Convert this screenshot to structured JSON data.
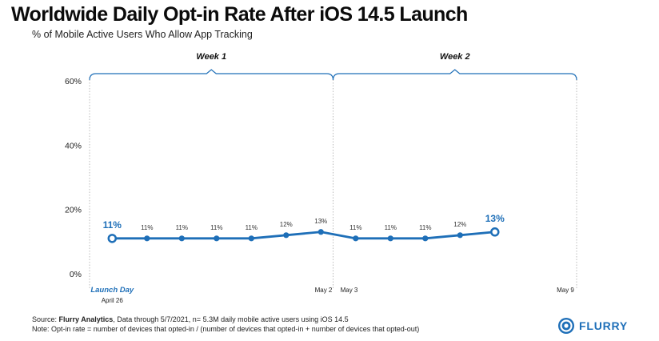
{
  "title": "Worldwide Daily Opt-in Rate After iOS 14.5 Launch",
  "subtitle": "% of Mobile Active Users Who Allow App Tracking",
  "footer": {
    "source_label": "Source: ",
    "source_name": "Flurry Analytics",
    "source_rest": ", Data through 5/7/2021, n= 5.3M daily mobile active users using iOS 14.5",
    "note": "Note: Opt-in rate = number of devices that opted-in / (number of devices that opted-in + number of devices that opted-out)"
  },
  "logo_text": "FLURRY",
  "colors": {
    "line": "#1e6fb8",
    "text": "#111111",
    "grid": "#bbbbbb"
  },
  "chart_data": {
    "type": "line",
    "title": "Worldwide Daily Opt-in Rate After iOS 14.5 Launch",
    "subtitle": "% of Mobile Active Users Who Allow App Tracking",
    "ylim": [
      0,
      60
    ],
    "yticks": [
      "0%",
      "20%",
      "40%",
      "60%"
    ],
    "grid": false,
    "weeks": [
      {
        "label": "Week 1",
        "start_day": 0,
        "end_day": 7
      },
      {
        "label": "Week 2",
        "start_day": 7,
        "end_day": 14
      }
    ],
    "x_labels": [
      {
        "day": 0,
        "text": "Launch Day",
        "sub": "April 26",
        "style": "accent"
      },
      {
        "day": 6,
        "text": "May 2"
      },
      {
        "day": 7,
        "text": "May 3"
      },
      {
        "day": 13,
        "text": "May 9"
      }
    ],
    "series": [
      {
        "days": [
          0,
          1,
          2,
          3,
          4,
          5,
          6,
          7,
          8,
          9,
          10,
          11
        ],
        "values": [
          11,
          11,
          11,
          11,
          11,
          12,
          13,
          11,
          11,
          11,
          12,
          13
        ],
        "labels": [
          "11%",
          "11%",
          "11%",
          "11%",
          "11%",
          "12%",
          "13%",
          "11%",
          "11%",
          "11%",
          "12%",
          "13%"
        ],
        "highlight": [
          0,
          11
        ]
      }
    ]
  }
}
